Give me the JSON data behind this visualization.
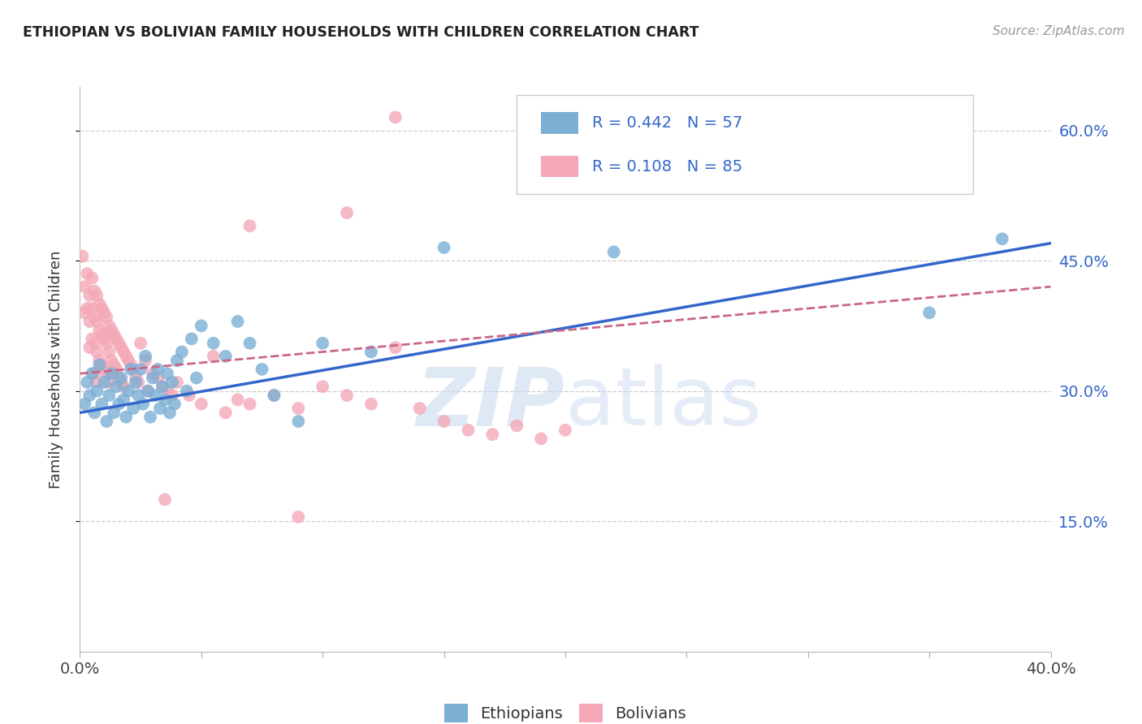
{
  "title": "ETHIOPIAN VS BOLIVIAN FAMILY HOUSEHOLDS WITH CHILDREN CORRELATION CHART",
  "source": "Source: ZipAtlas.com",
  "ylabel": "Family Households with Children",
  "xlim": [
    0.0,
    0.4
  ],
  "ylim": [
    0.0,
    0.65
  ],
  "ytick_positions": [
    0.15,
    0.3,
    0.45,
    0.6
  ],
  "xtick_positions": [
    0.0,
    0.05,
    0.1,
    0.15,
    0.2,
    0.25,
    0.3,
    0.35,
    0.4
  ],
  "xtick_labels_show": [
    "0.0%",
    "",
    "",
    "",
    "",
    "",
    "",
    "",
    "40.0%"
  ],
  "ytick_labels": [
    "15.0%",
    "30.0%",
    "45.0%",
    "60.0%"
  ],
  "ethiopians_color": "#7BAFD4",
  "bolivians_color": "#F4A8B8",
  "ethiopians_R": "0.442",
  "ethiopians_N": "57",
  "bolivians_R": "0.108",
  "bolivians_N": "85",
  "trend_blue_color": "#3366CC",
  "trend_pink_color": "#CC6688",
  "legend_label_color": "#3366CC",
  "right_axis_color": "#3366CC",
  "watermark_zip_color": "#C5D8EE",
  "watermark_atlas_color": "#C5D8EE",
  "eth_trend_y0": 0.275,
  "eth_trend_y1": 0.47,
  "bol_trend_y0": 0.32,
  "bol_trend_y1": 0.42,
  "ethiopians_x": [
    0.002,
    0.003,
    0.004,
    0.005,
    0.006,
    0.007,
    0.008,
    0.009,
    0.01,
    0.011,
    0.012,
    0.013,
    0.014,
    0.015,
    0.016,
    0.017,
    0.018,
    0.019,
    0.02,
    0.021,
    0.022,
    0.023,
    0.024,
    0.025,
    0.026,
    0.027,
    0.028,
    0.029,
    0.03,
    0.031,
    0.032,
    0.033,
    0.034,
    0.035,
    0.036,
    0.037,
    0.038,
    0.039,
    0.04,
    0.042,
    0.044,
    0.046,
    0.048,
    0.05,
    0.055,
    0.06,
    0.065,
    0.07,
    0.075,
    0.08,
    0.09,
    0.1,
    0.12,
    0.15,
    0.22,
    0.35,
    0.38
  ],
  "ethiopians_y": [
    0.285,
    0.31,
    0.295,
    0.32,
    0.275,
    0.3,
    0.33,
    0.285,
    0.31,
    0.265,
    0.295,
    0.32,
    0.275,
    0.305,
    0.285,
    0.315,
    0.29,
    0.27,
    0.3,
    0.325,
    0.28,
    0.31,
    0.295,
    0.325,
    0.285,
    0.34,
    0.3,
    0.27,
    0.315,
    0.295,
    0.325,
    0.28,
    0.305,
    0.29,
    0.32,
    0.275,
    0.31,
    0.285,
    0.335,
    0.345,
    0.3,
    0.36,
    0.315,
    0.375,
    0.355,
    0.34,
    0.38,
    0.355,
    0.325,
    0.295,
    0.265,
    0.355,
    0.345,
    0.465,
    0.46,
    0.39,
    0.475
  ],
  "bolivians_x": [
    0.001,
    0.002,
    0.002,
    0.003,
    0.003,
    0.004,
    0.004,
    0.004,
    0.005,
    0.005,
    0.005,
    0.006,
    0.006,
    0.006,
    0.006,
    0.007,
    0.007,
    0.007,
    0.007,
    0.008,
    0.008,
    0.008,
    0.009,
    0.009,
    0.009,
    0.01,
    0.01,
    0.01,
    0.011,
    0.011,
    0.011,
    0.012,
    0.012,
    0.012,
    0.013,
    0.013,
    0.014,
    0.014,
    0.015,
    0.015,
    0.016,
    0.016,
    0.017,
    0.017,
    0.018,
    0.018,
    0.019,
    0.02,
    0.021,
    0.022,
    0.023,
    0.024,
    0.025,
    0.027,
    0.028,
    0.03,
    0.032,
    0.034,
    0.036,
    0.038,
    0.04,
    0.045,
    0.05,
    0.055,
    0.06,
    0.065,
    0.07,
    0.08,
    0.09,
    0.1,
    0.11,
    0.12,
    0.13,
    0.14,
    0.15,
    0.16,
    0.17,
    0.18,
    0.19,
    0.2,
    0.13,
    0.11,
    0.07,
    0.035,
    0.09
  ],
  "bolivians_y": [
    0.455,
    0.42,
    0.39,
    0.435,
    0.395,
    0.41,
    0.38,
    0.35,
    0.43,
    0.395,
    0.36,
    0.415,
    0.385,
    0.355,
    0.32,
    0.41,
    0.38,
    0.345,
    0.31,
    0.4,
    0.37,
    0.335,
    0.395,
    0.365,
    0.33,
    0.39,
    0.36,
    0.325,
    0.385,
    0.355,
    0.32,
    0.375,
    0.345,
    0.31,
    0.37,
    0.335,
    0.365,
    0.33,
    0.36,
    0.325,
    0.355,
    0.315,
    0.35,
    0.31,
    0.345,
    0.305,
    0.34,
    0.335,
    0.33,
    0.325,
    0.315,
    0.31,
    0.355,
    0.335,
    0.3,
    0.32,
    0.315,
    0.305,
    0.3,
    0.295,
    0.31,
    0.295,
    0.285,
    0.34,
    0.275,
    0.29,
    0.285,
    0.295,
    0.28,
    0.305,
    0.295,
    0.285,
    0.35,
    0.28,
    0.265,
    0.255,
    0.25,
    0.26,
    0.245,
    0.255,
    0.615,
    0.505,
    0.49,
    0.175,
    0.155
  ]
}
